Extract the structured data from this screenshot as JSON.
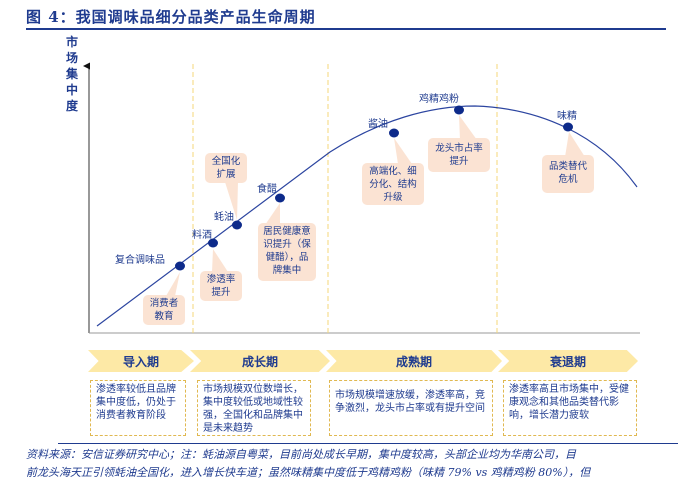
{
  "title": "图 4：我国调味品细分品类产品生命周期",
  "y_axis_label": "市场集中度",
  "products": [
    {
      "name": "复合调味品"
    },
    {
      "name": "料酒"
    },
    {
      "name": "蚝油"
    },
    {
      "name": "食醋"
    },
    {
      "name": "酱油"
    },
    {
      "name": "鸡精鸡粉"
    },
    {
      "name": "味精"
    }
  ],
  "callouts": [
    "消费者教育",
    "渗透率提升",
    "全国化扩展",
    "居民健康意识提升（保健醋），品牌集中",
    "高端化、细分化、结构升级",
    "龙头市占率提升",
    "品类替代危机"
  ],
  "phases": [
    {
      "name": "导入期",
      "desc": "渗透率较低且品牌集中度低，仍处于消费者教育阶段"
    },
    {
      "name": "成长期",
      "desc": "市场规模双位数增长，集中度较低或地域性较强，全国化和品牌集中是未来趋势"
    },
    {
      "name": "成熟期",
      "desc": "市场规模增速放缓，渗透率高，竞争激烈，龙头市占率或有提升空间"
    },
    {
      "name": "衰退期",
      "desc": "渗透率高且市场集中，受健康观念和其他品类替代影响，增长潜力疲软"
    }
  ],
  "footer": [
    "资料来源：安信证券研究中心；注：蚝油源自粤菜，目前尚处成长早期，集中度较高，头部企业均为华南公司，目",
    "前龙头海天正引领蚝油全国化，进入增长快车道；虽然味精集中度低于鸡精鸡粉（味精 79% vs 鸡精鸡粉 80%），但"
  ],
  "colors": {
    "primary": "#1f3b8f",
    "callout": "#fbe3d3",
    "phase": "#fde9a6",
    "dash": "#f5d77a"
  }
}
